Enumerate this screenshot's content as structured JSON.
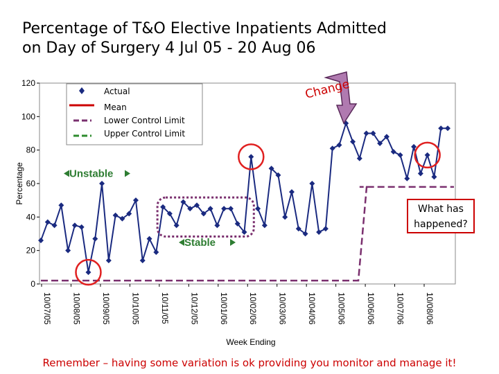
{
  "title_lines": [
    "Percentage of T&O Elective Inpatients Admitted",
    "on Day of Surgery 4 Jul 05 - 20 Aug 06"
  ],
  "footer": "Remember – having some variation is ok providing you monitor and manage it!",
  "colors": {
    "plot_bg": "#ffffff",
    "series": "#1a2a80",
    "mean": "#cc0000",
    "lcl": "#7a2f6e",
    "ucl": "#2e8b2e",
    "annotation_circle": "#e02020",
    "stable_box": "#7a2f6e"
  },
  "chart_data": {
    "type": "line",
    "title": "Percentage of T&O Elective Inpatients Admitted on Day of Surgery 4 Jul 05 - 20 Aug 06",
    "xlabel": "Week Ending",
    "ylabel": "Percentage",
    "ylim": [
      0,
      120
    ],
    "yticks": [
      0,
      20,
      40,
      60,
      80,
      100,
      120
    ],
    "x_tick_labels": [
      "10/07/05",
      "10/08/05",
      "10/09/05",
      "10/10/05",
      "10/11/05",
      "10/12/05",
      "10/01/06",
      "10/02/06",
      "10/03/06",
      "10/04/06",
      "10/05/06",
      "10/06/06",
      "10/07/06",
      "10/08/06"
    ],
    "grid": false,
    "legend_placement": "top-left",
    "legend": [
      "Actual",
      "Mean",
      "Lower Control Limit",
      "Upper Control Limit"
    ],
    "series": [
      {
        "name": "Actual",
        "values": [
          26,
          37,
          35,
          47,
          20,
          35,
          34,
          7,
          27,
          60,
          14,
          41,
          39,
          42,
          50,
          14,
          27,
          19,
          46,
          42,
          35,
          49,
          45,
          47,
          42,
          45,
          35,
          45,
          45,
          36,
          31,
          76,
          45,
          35,
          69,
          65,
          40,
          55,
          33,
          30,
          60,
          31,
          33,
          81,
          83,
          96,
          85,
          75,
          90,
          90,
          84,
          88,
          79,
          77,
          63,
          82,
          66,
          77,
          64,
          93,
          93
        ]
      },
      {
        "name": "Lower Control Limit",
        "values": [
          2,
          2,
          2,
          2,
          2,
          2,
          2,
          2,
          2,
          2,
          2,
          2,
          2,
          2,
          2,
          2,
          2,
          2,
          2,
          2,
          2,
          2,
          2,
          2,
          2,
          2,
          2,
          2,
          2,
          2,
          2,
          2,
          2,
          2,
          2,
          2,
          2,
          2,
          2,
          2,
          2,
          2,
          2,
          2,
          2,
          2,
          2,
          58,
          58,
          58,
          58,
          58,
          58,
          58,
          58,
          58,
          58,
          58,
          58,
          58,
          58
        ]
      }
    ],
    "annotations": [
      {
        "text": "Unstable",
        "y": 66
      },
      {
        "text": "Stable",
        "y": 24
      },
      {
        "text": "Change"
      },
      {
        "text": "What has",
        "line2": "happened?"
      }
    ],
    "circled_points": [
      7,
      31,
      57
    ]
  }
}
